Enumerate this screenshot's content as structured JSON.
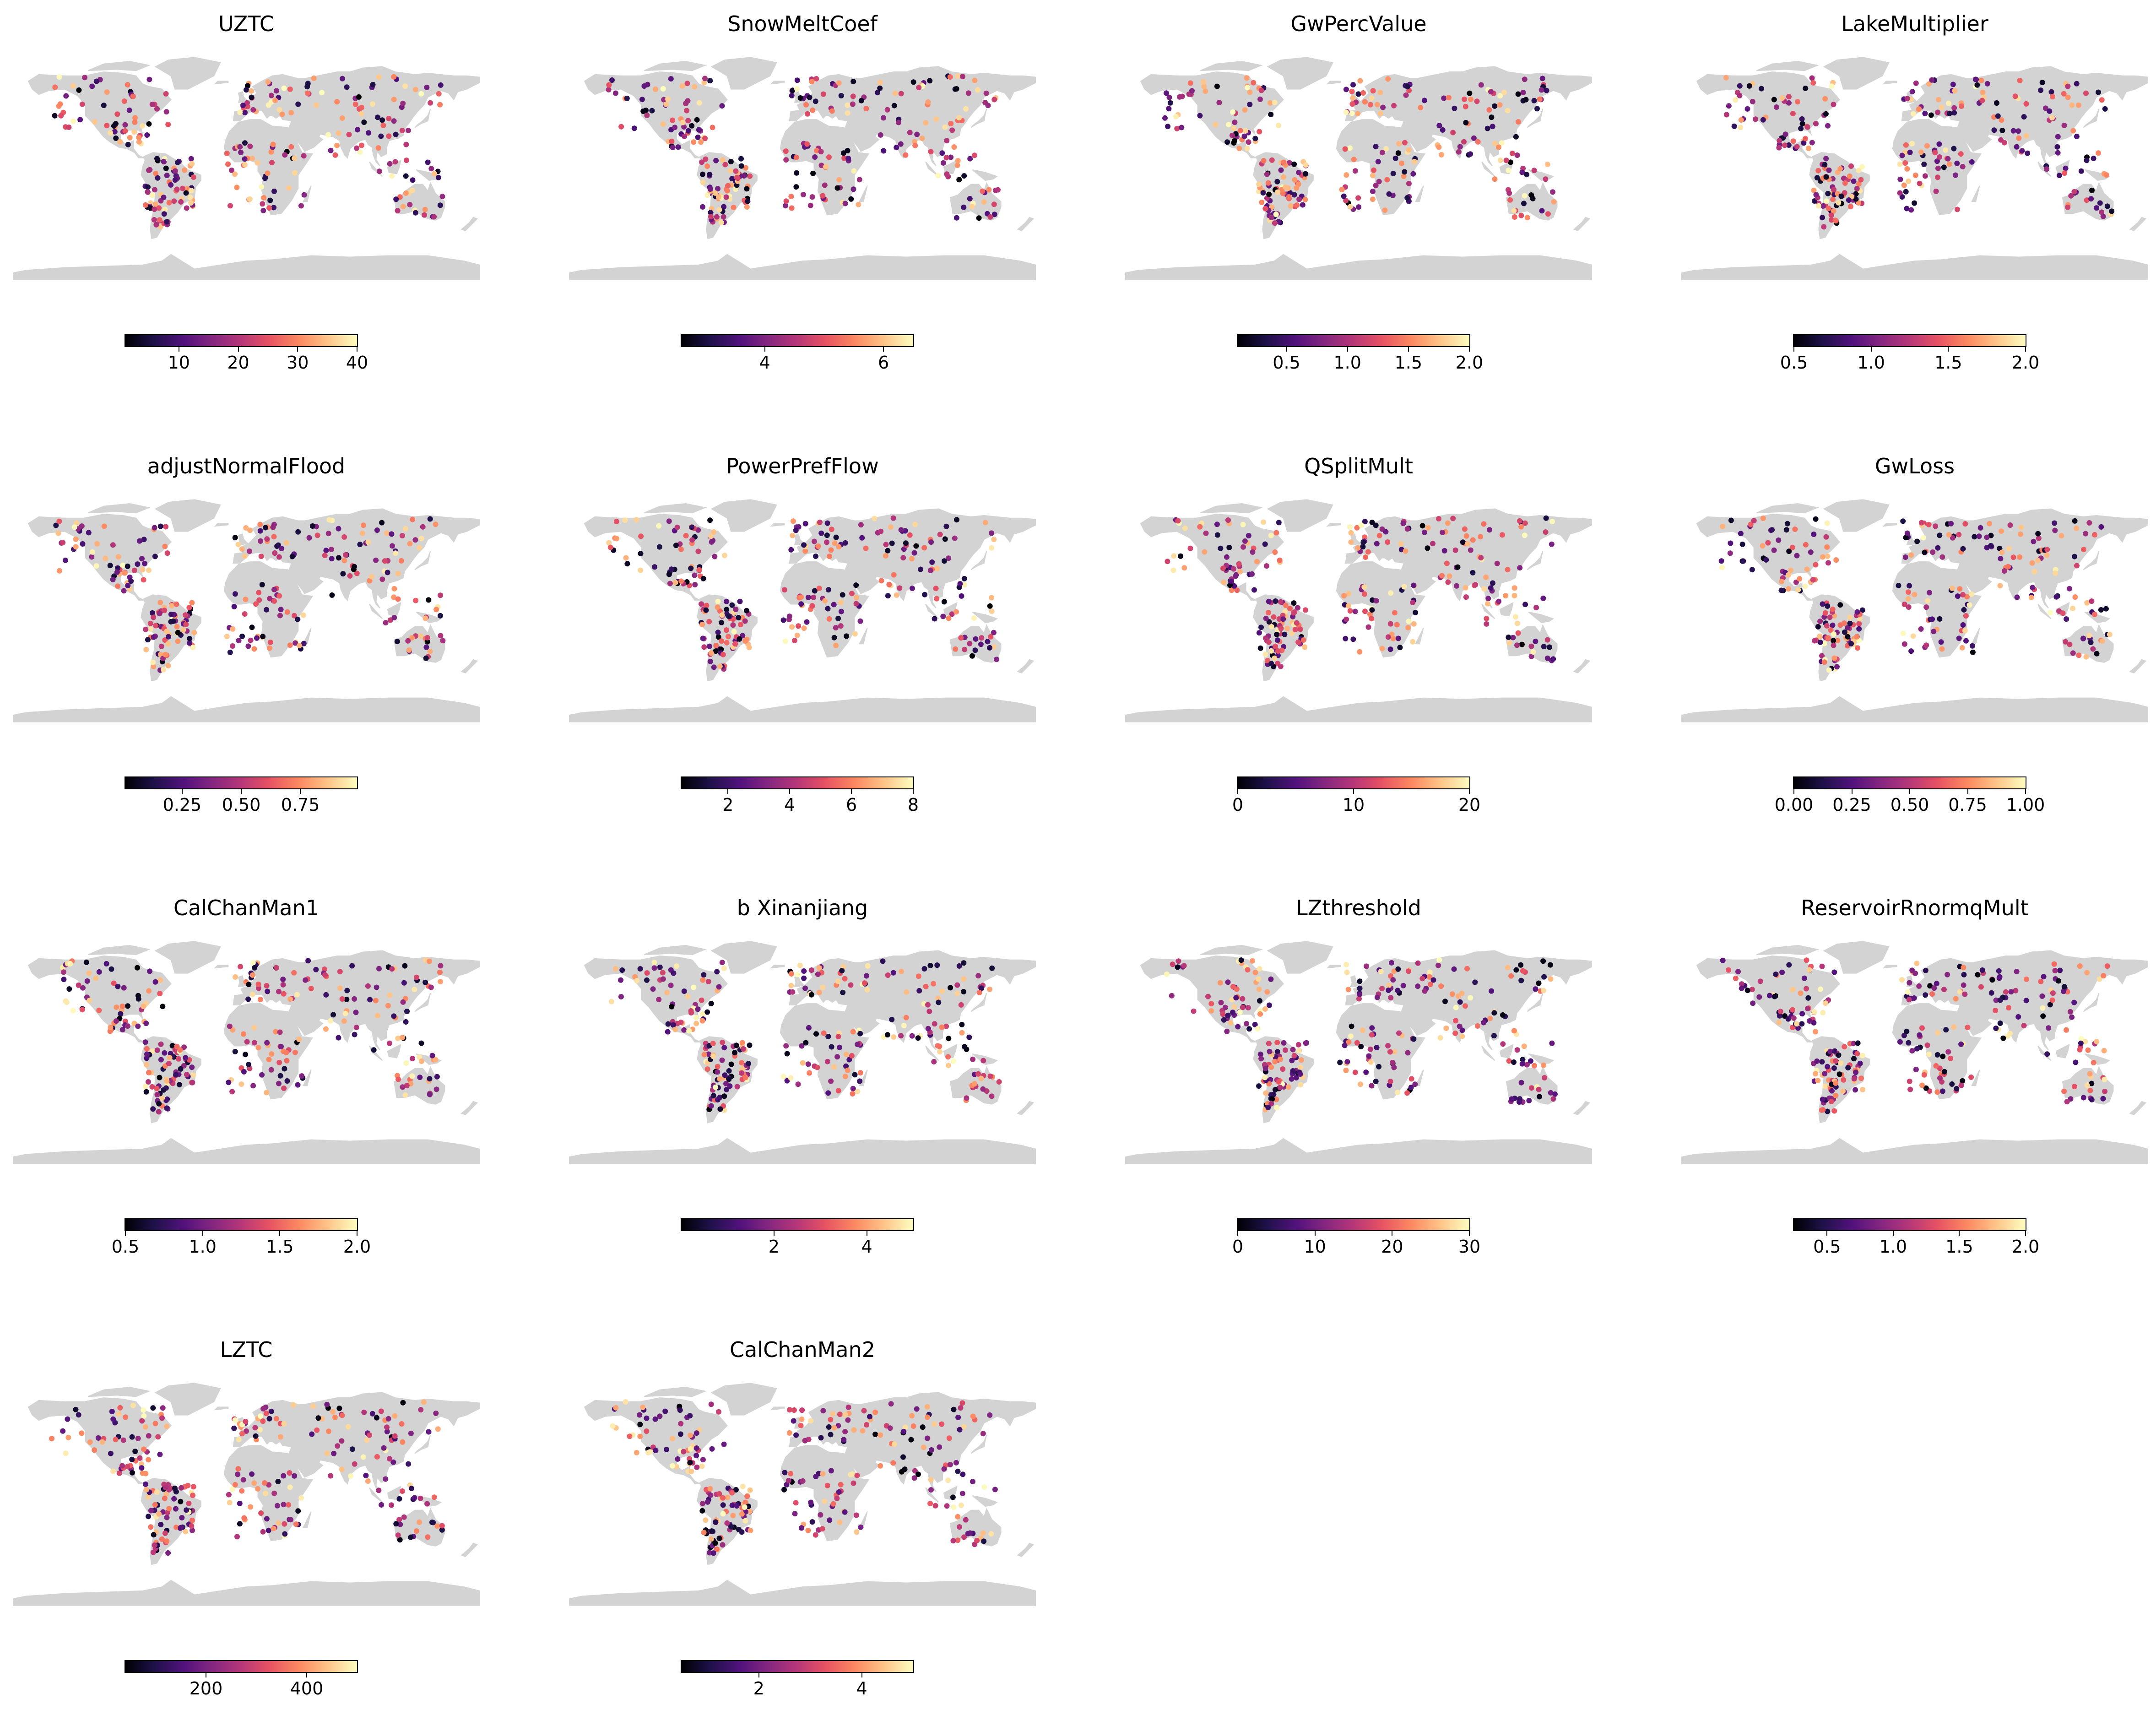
{
  "figure": {
    "colormap": "magma",
    "land_color": "#d3d3d3",
    "background": "#ffffff"
  },
  "chart_data": [
    {
      "type": "scatter",
      "title": "UZTC",
      "colorbar": {
        "range": [
          1,
          40
        ],
        "ticks": [
          10,
          20,
          30,
          40
        ],
        "tick_labels": [
          "10",
          "20",
          "30",
          "40"
        ]
      }
    },
    {
      "type": "scatter",
      "title": "SnowMeltCoef",
      "colorbar": {
        "range": [
          2.6,
          6.5
        ],
        "ticks": [
          4,
          6
        ],
        "tick_labels": [
          "4",
          "6"
        ]
      }
    },
    {
      "type": "scatter",
      "title": "GwPercValue",
      "colorbar": {
        "range": [
          0.1,
          2.0
        ],
        "ticks": [
          0.5,
          1.0,
          1.5,
          2.0
        ],
        "tick_labels": [
          "0.5",
          "1.0",
          "1.5",
          "2.0"
        ]
      }
    },
    {
      "type": "scatter",
      "title": "LakeMultiplier",
      "colorbar": {
        "range": [
          0.5,
          2.0
        ],
        "ticks": [
          0.5,
          1.0,
          1.5,
          2.0
        ],
        "tick_labels": [
          "0.5",
          "1.0",
          "1.5",
          "2.0"
        ]
      }
    },
    {
      "type": "scatter",
      "title": "adjustNormalFlood",
      "colorbar": {
        "range": [
          0.01,
          0.99
        ],
        "ticks": [
          0.25,
          0.5,
          0.75
        ],
        "tick_labels": [
          "0.25",
          "0.50",
          "0.75"
        ]
      }
    },
    {
      "type": "scatter",
      "title": "PowerPrefFlow",
      "colorbar": {
        "range": [
          0.5,
          8
        ],
        "ticks": [
          2,
          4,
          6,
          8
        ],
        "tick_labels": [
          "2",
          "4",
          "6",
          "8"
        ]
      }
    },
    {
      "type": "scatter",
      "title": "QSplitMult",
      "colorbar": {
        "range": [
          0,
          20
        ],
        "ticks": [
          0,
          10,
          20
        ],
        "tick_labels": [
          "0",
          "10",
          "20"
        ]
      }
    },
    {
      "type": "scatter",
      "title": "GwLoss",
      "colorbar": {
        "range": [
          0,
          1
        ],
        "ticks": [
          0,
          0.25,
          0.5,
          0.75,
          1.0
        ],
        "tick_labels": [
          "0.00",
          "0.25",
          "0.50",
          "0.75",
          "1.00"
        ]
      }
    },
    {
      "type": "scatter",
      "title": "CalChanMan1",
      "colorbar": {
        "range": [
          0.5,
          2.0
        ],
        "ticks": [
          0.5,
          1.0,
          1.5,
          2.0
        ],
        "tick_labels": [
          "0.5",
          "1.0",
          "1.5",
          "2.0"
        ]
      }
    },
    {
      "type": "scatter",
      "title": "b Xinanjiang",
      "colorbar": {
        "range": [
          0.01,
          5
        ],
        "ticks": [
          2,
          4
        ],
        "tick_labels": [
          "2",
          "4"
        ]
      }
    },
    {
      "type": "scatter",
      "title": "LZthreshold",
      "colorbar": {
        "range": [
          0,
          30
        ],
        "ticks": [
          0,
          10,
          20,
          30
        ],
        "tick_labels": [
          "0",
          "10",
          "20",
          "30"
        ]
      }
    },
    {
      "type": "scatter",
      "title": "ReservoirRnormqMult",
      "colorbar": {
        "range": [
          0.25,
          2.0
        ],
        "ticks": [
          0.5,
          1.0,
          1.5,
          2.0
        ],
        "tick_labels": [
          "0.5",
          "1.0",
          "1.5",
          "2.0"
        ]
      }
    },
    {
      "type": "scatter",
      "title": "LZTC",
      "colorbar": {
        "range": [
          40,
          500
        ],
        "ticks": [
          200,
          400
        ],
        "tick_labels": [
          "200",
          "400"
        ]
      }
    },
    {
      "type": "scatter",
      "title": "CalChanMan2",
      "colorbar": {
        "range": [
          0.5,
          5
        ],
        "ticks": [
          2,
          4
        ],
        "tick_labels": [
          "2",
          "4"
        ]
      }
    }
  ]
}
